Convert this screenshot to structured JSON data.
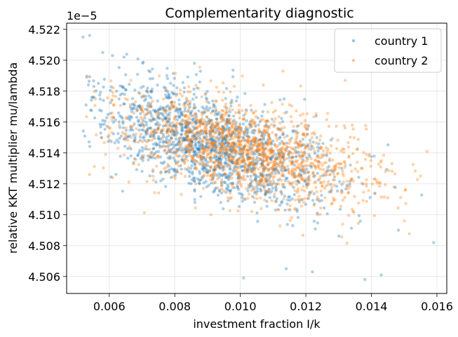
{
  "chart_data": {
    "type": "scatter",
    "title": "Complementarity diagnostic",
    "xlabel": "investment fraction I/k",
    "ylabel": "relative KKT multiplier mu/lambda",
    "y_offset_label": "1e−5",
    "xlim": [
      0.0047,
      0.0163
    ],
    "ylim": [
      4.5049,
      4.5224
    ],
    "x_ticks": [
      0.006,
      0.008,
      0.01,
      0.012,
      0.014,
      0.016
    ],
    "x_tick_labels": [
      "0.006",
      "0.008",
      "0.010",
      "0.012",
      "0.014",
      "0.016"
    ],
    "y_ticks": [
      4.506,
      4.508,
      4.51,
      4.512,
      4.514,
      4.516,
      4.518,
      4.52,
      4.522
    ],
    "y_tick_labels": [
      "4.506",
      "4.508",
      "4.510",
      "4.512",
      "4.514",
      "4.516",
      "4.518",
      "4.520",
      "4.522"
    ],
    "grid": true,
    "legend_position": "top-right",
    "series": [
      {
        "name": "country 1",
        "color": "#1f77b4",
        "n_points": 1500,
        "x_range": [
          0.0052,
          0.0159
        ],
        "center": [
          0.0092,
          4.5145
        ],
        "slope": -0.65,
        "x_sd": 0.0018,
        "y_sd": 0.00165,
        "anchors": [
          [
            0.0052,
            4.5215
          ],
          [
            0.0054,
            4.5216
          ],
          [
            0.0058,
            4.5205
          ],
          [
            0.0061,
            4.5203
          ],
          [
            0.0138,
            4.5058
          ],
          [
            0.0143,
            4.5061
          ],
          [
            0.0159,
            4.5082
          ],
          [
            0.0122,
            4.5063
          ],
          [
            0.0114,
            4.5065
          ],
          [
            0.0086,
            4.5198
          ],
          [
            0.0101,
            4.5059
          ]
        ]
      },
      {
        "name": "country 2",
        "color": "#ff7f0e",
        "n_points": 1500,
        "x_range": [
          0.0053,
          0.0157
        ],
        "center": [
          0.0102,
          4.5142
        ],
        "slope": -0.45,
        "x_sd": 0.0019,
        "y_sd": 0.00155,
        "anchors": [
          [
            0.0113,
            4.5193
          ],
          [
            0.0132,
            4.5187
          ],
          [
            0.0157,
            4.5141
          ],
          [
            0.0155,
            4.5125
          ],
          [
            0.0061,
            4.5124
          ],
          [
            0.0054,
            4.5126
          ],
          [
            0.0091,
            4.51
          ],
          [
            0.0147,
            4.5118
          ],
          [
            0.0143,
            4.5135
          ]
        ]
      }
    ]
  }
}
